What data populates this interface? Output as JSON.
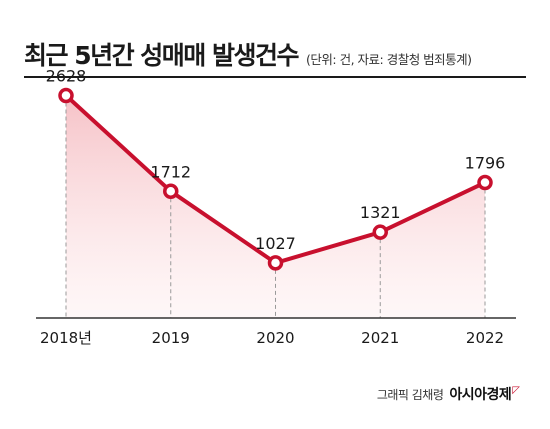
{
  "header": {
    "title": "최근 5년간 성매매 발생건수",
    "subtitle": "(단위: 건, 자료: 경찰청 범죄통계)"
  },
  "chart_data": {
    "type": "area",
    "categories": [
      "2018년",
      "2019",
      "2020",
      "2021",
      "2022"
    ],
    "values": [
      2628,
      1712,
      1027,
      1321,
      1796
    ],
    "data_labels": [
      "2628",
      "1712",
      "1027",
      "1321",
      "1796"
    ],
    "title": "최근 5년간 성매매 발생건수",
    "subtitle": "(단위: 건, 자료: 경찰청 범죄통계)",
    "ylim": [
      500,
      2700
    ],
    "grid": false,
    "line_color": "#c8102e",
    "fill_color": "#f9d8db"
  },
  "footer": {
    "credit": "그래픽 김채령",
    "brand": "아시아경제"
  }
}
